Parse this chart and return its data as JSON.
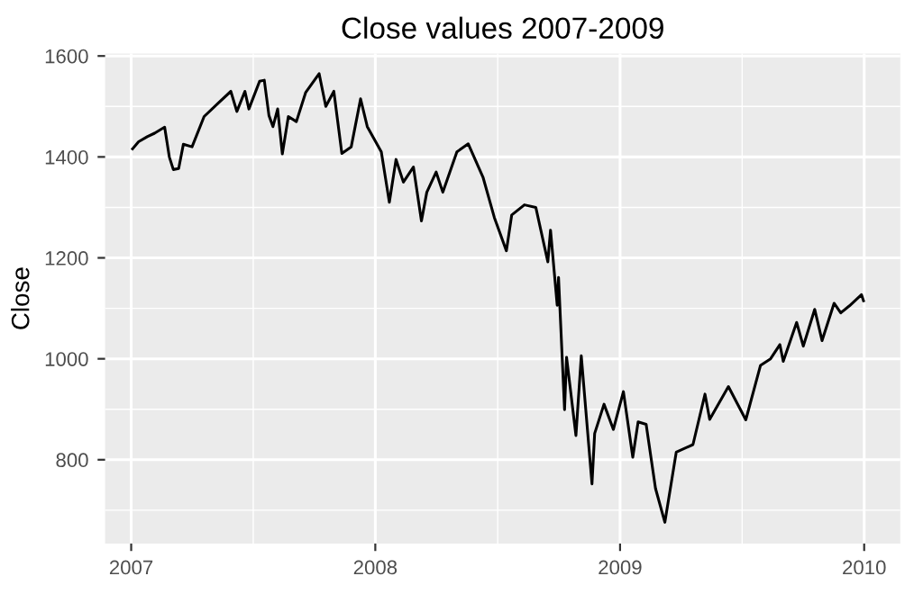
{
  "chart_data": {
    "type": "line",
    "title": "Close values 2007-2009",
    "ylabel": "Close",
    "x": [
      "2007-01-03",
      "2007-01-12",
      "2007-01-25",
      "2007-02-05",
      "2007-02-20",
      "2007-02-27",
      "2007-03-05",
      "2007-03-13",
      "2007-03-20",
      "2007-04-02",
      "2007-04-20",
      "2007-05-10",
      "2007-05-30",
      "2007-06-08",
      "2007-06-20",
      "2007-06-26",
      "2007-07-12",
      "2007-07-19",
      "2007-07-26",
      "2007-08-01",
      "2007-08-08",
      "2007-08-15",
      "2007-08-24",
      "2007-09-05",
      "2007-09-19",
      "2007-10-09",
      "2007-10-19",
      "2007-10-31",
      "2007-11-12",
      "2007-11-26",
      "2007-12-10",
      "2007-12-20",
      "2008-01-10",
      "2008-01-22",
      "2008-02-01",
      "2008-02-12",
      "2008-02-27",
      "2008-03-10",
      "2008-03-18",
      "2008-04-01",
      "2008-04-11",
      "2008-05-02",
      "2008-05-19",
      "2008-06-10",
      "2008-06-27",
      "2008-07-15",
      "2008-07-23",
      "2008-08-11",
      "2008-08-28",
      "2008-09-15",
      "2008-09-19",
      "2008-09-29",
      "2008-10-01",
      "2008-10-10",
      "2008-10-13",
      "2008-10-27",
      "2008-11-04",
      "2008-11-20",
      "2008-11-24",
      "2008-12-08",
      "2008-12-22",
      "2009-01-06",
      "2009-01-20",
      "2009-01-28",
      "2009-02-09",
      "2009-02-23",
      "2009-03-09",
      "2009-03-26",
      "2009-04-20",
      "2009-05-08",
      "2009-05-15",
      "2009-06-12",
      "2009-07-08",
      "2009-07-30",
      "2009-08-14",
      "2009-08-28",
      "2009-09-02",
      "2009-09-22",
      "2009-10-02",
      "2009-10-19",
      "2009-10-30",
      "2009-11-17",
      "2009-11-27",
      "2009-12-10",
      "2009-12-28",
      "2009-12-31"
    ],
    "values": [
      1416,
      1430,
      1440,
      1447,
      1459,
      1400,
      1375,
      1377,
      1425,
      1420,
      1480,
      1505,
      1530,
      1490,
      1530,
      1495,
      1550,
      1552,
      1482,
      1460,
      1495,
      1406,
      1480,
      1470,
      1528,
      1565,
      1500,
      1530,
      1407,
      1420,
      1515,
      1460,
      1410,
      1310,
      1395,
      1350,
      1380,
      1273,
      1330,
      1370,
      1330,
      1410,
      1426,
      1360,
      1280,
      1214,
      1285,
      1305,
      1300,
      1192,
      1255,
      1106,
      1161,
      899,
      1003,
      848,
      1006,
      752,
      852,
      910,
      860,
      935,
      805,
      875,
      870,
      743,
      676,
      815,
      830,
      930,
      880,
      945,
      879,
      987,
      1000,
      1028,
      995,
      1072,
      1025,
      1098,
      1036,
      1110,
      1091,
      1105,
      1127,
      1115
    ],
    "color": "#000000",
    "line_style": "solid",
    "marker": "none",
    "xlim": [
      "2006-11-23",
      "2010-02-24"
    ],
    "xticks": [
      {
        "value": "2007-01-01",
        "label": "2007"
      },
      {
        "value": "2008-01-01",
        "label": "2008"
      },
      {
        "value": "2009-01-01",
        "label": "2009"
      },
      {
        "value": "2010-01-01",
        "label": "2010"
      }
    ],
    "ylim": [
      634,
      1605
    ],
    "yticks": [
      800,
      1000,
      1200,
      1400,
      1600
    ],
    "grid": true
  }
}
